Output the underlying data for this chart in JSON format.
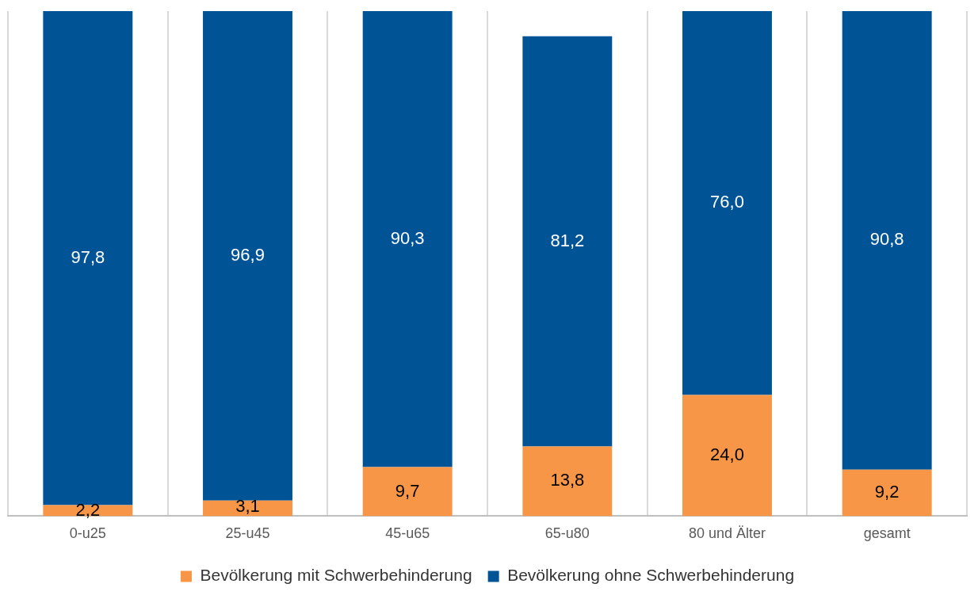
{
  "chart_data": {
    "type": "bar",
    "stacked": true,
    "categories": [
      "0-u25",
      "25-u45",
      "45-u65",
      "65-u80",
      "80 und Älter",
      "gesamt"
    ],
    "series": [
      {
        "name": "Bevölkerung mit Schwerbehinderung",
        "color": "#f79646",
        "values": [
          2.2,
          3.1,
          9.7,
          13.8,
          24.0,
          9.2
        ],
        "value_labels": [
          "2,2",
          "3,1",
          "9,7",
          "13,8",
          "24,0",
          "9,2"
        ]
      },
      {
        "name": "Bevölkerung ohne Schwerbehinderung",
        "color": "#005496",
        "values": [
          97.8,
          96.9,
          90.3,
          81.2,
          76.0,
          90.8
        ],
        "value_labels": [
          "97,8",
          "96,9",
          "90,3",
          "81,2",
          "76,0",
          "90,8"
        ]
      }
    ],
    "ylim": [
      0,
      100
    ],
    "tick_labels": "x",
    "grid": "x",
    "legend": "bottom"
  }
}
